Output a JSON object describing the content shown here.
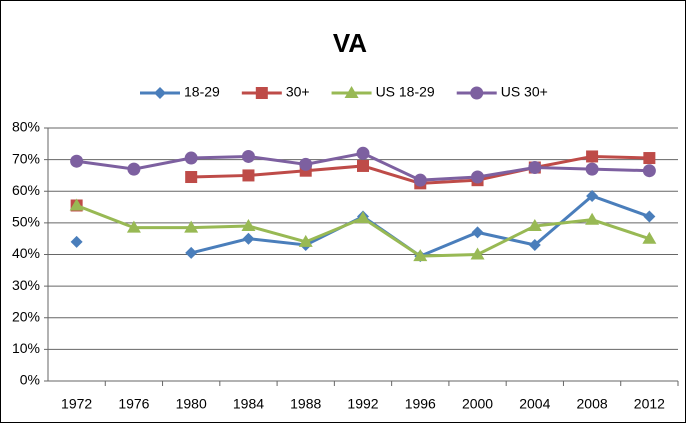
{
  "chart_data": {
    "type": "line",
    "title": "VA",
    "categories": [
      "1972",
      "1976",
      "1980",
      "1984",
      "1988",
      "1992",
      "1996",
      "2000",
      "2004",
      "2008",
      "2012"
    ],
    "series": [
      {
        "name": "18-29",
        "color": "#4a7ebb",
        "marker": "diamond",
        "values": [
          44,
          null,
          40.5,
          45,
          43,
          52,
          39.5,
          47,
          43,
          58.5,
          52
        ]
      },
      {
        "name": "30+",
        "color": "#be4b48",
        "marker": "square",
        "values": [
          55.5,
          null,
          64.5,
          65,
          66.5,
          68,
          62.5,
          63.5,
          67.5,
          71,
          70.5
        ]
      },
      {
        "name": "US 18-29",
        "color": "#98b954",
        "marker": "triangle",
        "values": [
          55.5,
          48.5,
          48.5,
          49,
          44,
          51.5,
          39.5,
          40,
          49,
          51,
          45
        ]
      },
      {
        "name": "US 30+",
        "color": "#7d60a0",
        "marker": "circle",
        "values": [
          69.5,
          67,
          70.5,
          71,
          68.5,
          72,
          63.5,
          64.5,
          67.5,
          67,
          66.5
        ]
      }
    ],
    "ylim": [
      0,
      80
    ],
    "yticks": [
      {
        "value": 0,
        "label": "0%"
      },
      {
        "value": 10,
        "label": "10%"
      },
      {
        "value": 20,
        "label": "20%"
      },
      {
        "value": 30,
        "label": "30%"
      },
      {
        "value": 40,
        "label": "40%"
      },
      {
        "value": 50,
        "label": "50%"
      },
      {
        "value": 60,
        "label": "60%"
      },
      {
        "value": 70,
        "label": "70%"
      },
      {
        "value": 80,
        "label": "80%"
      }
    ],
    "grid": true,
    "legend": "top"
  }
}
